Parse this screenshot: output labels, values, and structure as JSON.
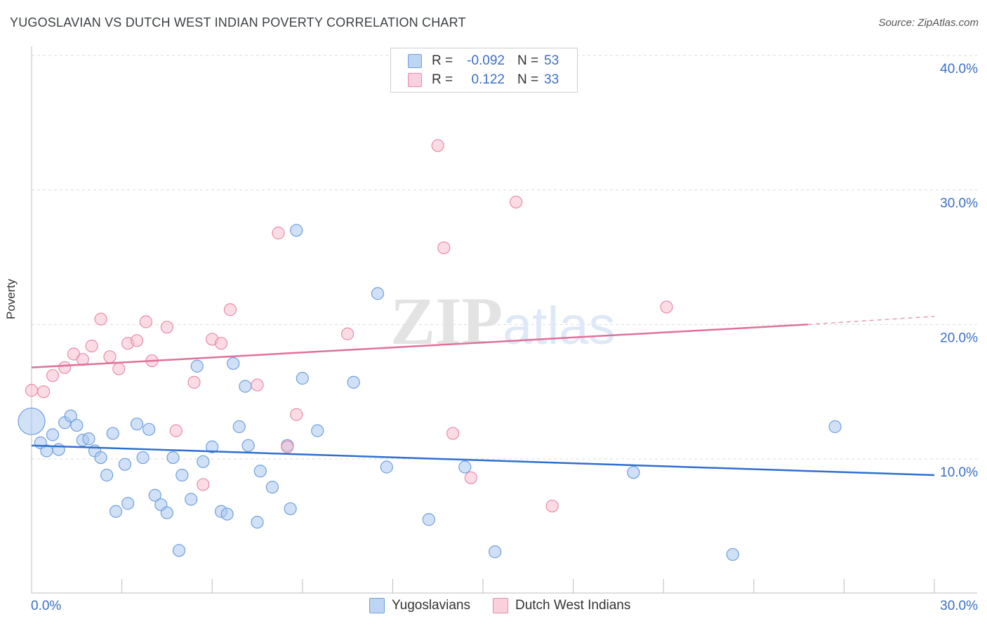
{
  "title": "YUGOSLAVIAN VS DUTCH WEST INDIAN POVERTY CORRELATION CHART",
  "source": "Source: ZipAtlas.com",
  "watermark": {
    "zip": "ZIP",
    "atlas": "atlas"
  },
  "legend": {
    "rows": [
      {
        "r_label": "R =",
        "r_value": "-0.092",
        "n_label": "N =",
        "n_value": "53"
      },
      {
        "r_label": "R =",
        "r_value": "0.122",
        "n_label": "N =",
        "n_value": "33"
      }
    ]
  },
  "bottom_legend": [
    "Yugoslavians",
    "Dutch West Indians"
  ],
  "colors": {
    "blue_fill": "#a9c8f0",
    "blue_stroke": "#6f9fdc",
    "blue_line": "#2f6fcf",
    "pink_fill": "#f7bfd0",
    "pink_stroke": "#e98aa8",
    "pink_line": "#e0709a",
    "tick_text": "#3a6fc5",
    "grid": "#dcdcdc"
  },
  "chart_data": {
    "type": "scatter",
    "title": "YUGOSLAVIAN VS DUTCH WEST INDIAN POVERTY CORRELATION CHART",
    "xlabel": "",
    "ylabel": "Poverty",
    "xlim": [
      0,
      30
    ],
    "ylim": [
      0,
      40
    ],
    "x_tick_labels": [
      "0.0%",
      "30.0%"
    ],
    "y_ticks": [
      10,
      20,
      30,
      40
    ],
    "y_tick_labels": [
      "10.0%",
      "20.0%",
      "30.0%",
      "40.0%"
    ],
    "grid": true,
    "legend_position": "top-center",
    "series": [
      {
        "name": "Yugoslavians",
        "r": -0.092,
        "n": 53,
        "trend": {
          "x0": 0,
          "y0": 11.0,
          "x1": 30,
          "y1": 8.8
        },
        "points": [
          [
            0.0,
            12.8,
            "large"
          ],
          [
            0.3,
            11.2
          ],
          [
            0.5,
            10.6
          ],
          [
            0.7,
            11.8
          ],
          [
            0.9,
            10.7
          ],
          [
            1.1,
            12.7
          ],
          [
            1.3,
            13.2
          ],
          [
            1.5,
            12.5
          ],
          [
            1.7,
            11.4
          ],
          [
            1.9,
            11.5
          ],
          [
            2.1,
            10.6
          ],
          [
            2.3,
            10.1
          ],
          [
            2.5,
            8.8
          ],
          [
            2.7,
            11.9
          ],
          [
            2.8,
            6.1
          ],
          [
            3.1,
            9.6
          ],
          [
            3.2,
            6.7
          ],
          [
            3.5,
            12.6
          ],
          [
            3.7,
            10.1
          ],
          [
            3.9,
            12.2
          ],
          [
            4.1,
            7.3
          ],
          [
            4.3,
            6.6
          ],
          [
            4.5,
            6.0
          ],
          [
            4.7,
            10.1
          ],
          [
            4.9,
            3.2
          ],
          [
            5.0,
            8.8
          ],
          [
            5.3,
            7.0
          ],
          [
            5.5,
            16.9
          ],
          [
            5.7,
            9.8
          ],
          [
            6.0,
            10.9
          ],
          [
            6.3,
            6.1
          ],
          [
            6.5,
            5.9
          ],
          [
            6.7,
            17.1
          ],
          [
            6.9,
            12.4
          ],
          [
            7.1,
            15.4
          ],
          [
            7.2,
            11.0
          ],
          [
            7.5,
            5.3
          ],
          [
            7.6,
            9.1
          ],
          [
            8.0,
            7.9
          ],
          [
            8.5,
            11.0
          ],
          [
            8.6,
            6.3
          ],
          [
            8.8,
            27.0
          ],
          [
            9.0,
            16.0
          ],
          [
            9.5,
            12.1
          ],
          [
            10.7,
            15.7
          ],
          [
            11.5,
            22.3
          ],
          [
            11.8,
            9.4
          ],
          [
            13.2,
            5.5
          ],
          [
            14.4,
            9.4
          ],
          [
            15.4,
            3.1
          ],
          [
            20.0,
            9.0
          ],
          [
            23.3,
            2.9
          ],
          [
            26.7,
            12.4
          ]
        ]
      },
      {
        "name": "Dutch West Indians",
        "r": 0.122,
        "n": 33,
        "trend": {
          "x0": 0,
          "y0": 16.8,
          "x1": 25.8,
          "y1": 20.0,
          "dash_to_x": 30,
          "dash_to_y": 20.6
        },
        "points": [
          [
            0.0,
            15.1
          ],
          [
            0.4,
            15.0
          ],
          [
            0.7,
            16.2
          ],
          [
            1.1,
            16.8
          ],
          [
            1.4,
            17.8
          ],
          [
            1.7,
            17.4
          ],
          [
            2.0,
            18.4
          ],
          [
            2.3,
            20.4
          ],
          [
            2.6,
            17.6
          ],
          [
            2.9,
            16.7
          ],
          [
            3.2,
            18.6
          ],
          [
            3.5,
            18.8
          ],
          [
            3.8,
            20.2
          ],
          [
            4.0,
            17.3
          ],
          [
            4.5,
            19.8
          ],
          [
            4.8,
            12.1
          ],
          [
            5.4,
            15.7
          ],
          [
            5.7,
            8.1
          ],
          [
            6.0,
            18.9
          ],
          [
            6.3,
            18.6
          ],
          [
            6.6,
            21.1
          ],
          [
            7.5,
            15.5
          ],
          [
            8.2,
            26.8
          ],
          [
            8.5,
            10.9
          ],
          [
            8.8,
            13.3
          ],
          [
            10.5,
            19.3
          ],
          [
            13.5,
            33.3
          ],
          [
            13.7,
            25.7
          ],
          [
            14.0,
            11.9
          ],
          [
            14.6,
            8.6
          ],
          [
            16.1,
            29.1
          ],
          [
            17.3,
            6.5
          ],
          [
            21.1,
            21.3
          ]
        ]
      }
    ]
  }
}
